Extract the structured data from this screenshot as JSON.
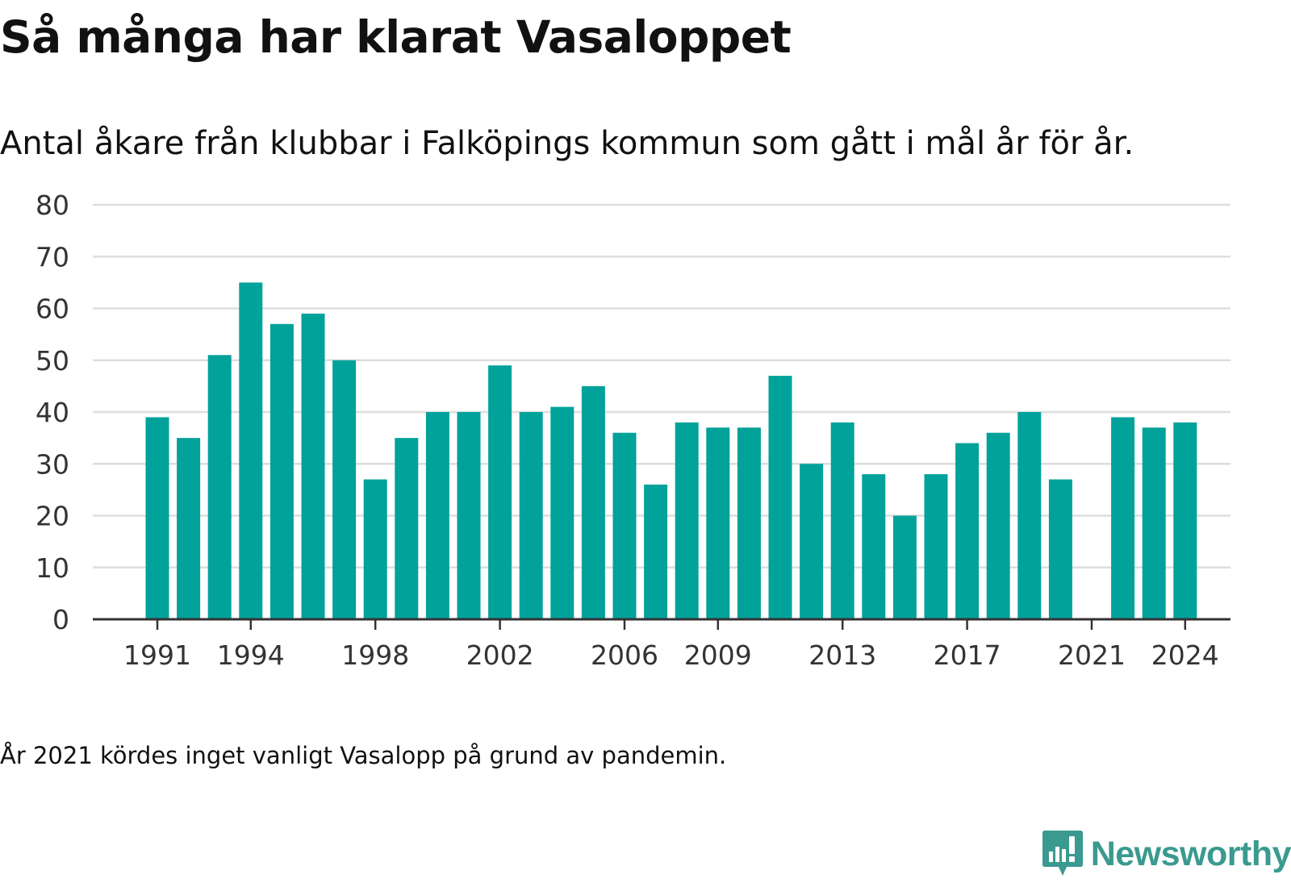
{
  "title": "Så många har klarat Vasaloppet",
  "subtitle": "Antal åkare från klubbar i Falköpings kommun som gått i mål år för år.",
  "note": "År 2021 kördes inget vanligt Vasalopp på grund av pandemin.",
  "brand": {
    "name": "Newsworthy",
    "color": "#3a9a8f"
  },
  "colors": {
    "bar": "#00a29a",
    "grid": "#dddddd",
    "axis": "#333333",
    "tick_text": "#333333"
  },
  "chart_data": {
    "type": "bar",
    "categories": [
      1991,
      1992,
      1993,
      1994,
      1995,
      1996,
      1997,
      1998,
      1999,
      2000,
      2001,
      2002,
      2003,
      2004,
      2005,
      2006,
      2007,
      2008,
      2009,
      2010,
      2011,
      2012,
      2013,
      2014,
      2015,
      2016,
      2017,
      2018,
      2019,
      2020,
      2021,
      2022,
      2023,
      2024
    ],
    "values": [
      39,
      35,
      51,
      65,
      57,
      59,
      50,
      27,
      35,
      40,
      40,
      49,
      40,
      41,
      45,
      36,
      26,
      38,
      37,
      37,
      47,
      30,
      38,
      28,
      20,
      28,
      34,
      36,
      40,
      27,
      null,
      39,
      37,
      38
    ],
    "x_tick_labels": [
      "1991",
      "1994",
      "1998",
      "2002",
      "2006",
      "2009",
      "2013",
      "2017",
      "2021",
      "2024"
    ],
    "y_ticks": [
      0,
      10,
      20,
      30,
      40,
      50,
      60,
      70,
      80
    ],
    "ylim": [
      0,
      80
    ],
    "grid": true,
    "xlabel": "",
    "ylabel": ""
  }
}
